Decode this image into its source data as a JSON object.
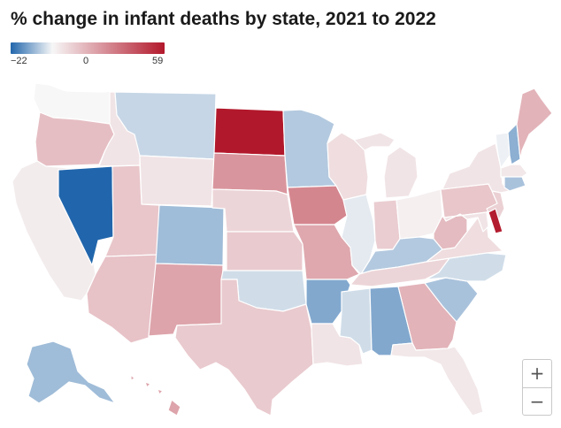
{
  "title": "% change in infant deaths by state, 2021 to 2022",
  "legend": {
    "min_label": "−22",
    "mid_label": "0",
    "max_label": "59",
    "min_value": -22,
    "mid_value": 0,
    "max_value": 59,
    "colors": {
      "low": "#2166ac",
      "mid": "#f7f7f7",
      "high": "#b2182b"
    }
  },
  "zoom": {
    "in_label": "+",
    "out_label": "−"
  },
  "states": [
    {
      "id": "WA",
      "value": 0
    },
    {
      "id": "OR",
      "value": 15
    },
    {
      "id": "CA",
      "value": 3
    },
    {
      "id": "NV",
      "value": -22
    },
    {
      "id": "ID",
      "value": 5
    },
    {
      "id": "MT",
      "value": -5
    },
    {
      "id": "WY",
      "value": 5
    },
    {
      "id": "UT",
      "value": 13
    },
    {
      "id": "AZ",
      "value": 14
    },
    {
      "id": "CO",
      "value": -9
    },
    {
      "id": "NM",
      "value": 22
    },
    {
      "id": "ND",
      "value": 59
    },
    {
      "id": "SD",
      "value": 26
    },
    {
      "id": "NE",
      "value": 9
    },
    {
      "id": "KS",
      "value": 12
    },
    {
      "id": "OK",
      "value": -4
    },
    {
      "id": "TX",
      "value": 12
    },
    {
      "id": "MN",
      "value": -7
    },
    {
      "id": "IA",
      "value": 30
    },
    {
      "id": "MO",
      "value": 21
    },
    {
      "id": "AR",
      "value": -12
    },
    {
      "id": "LA",
      "value": 5
    },
    {
      "id": "WI",
      "value": 7
    },
    {
      "id": "IL",
      "value": -2
    },
    {
      "id": "MI",
      "value": 5
    },
    {
      "id": "IN",
      "value": 11
    },
    {
      "id": "OH",
      "value": 2
    },
    {
      "id": "KY",
      "value": -7
    },
    {
      "id": "TN",
      "value": 9
    },
    {
      "id": "MS",
      "value": -4
    },
    {
      "id": "AL",
      "value": -12
    },
    {
      "id": "GA",
      "value": 18
    },
    {
      "id": "FL",
      "value": 4
    },
    {
      "id": "SC",
      "value": -8
    },
    {
      "id": "NC",
      "value": -4
    },
    {
      "id": "VA",
      "value": 7
    },
    {
      "id": "WV",
      "value": 16
    },
    {
      "id": "PA",
      "value": 13
    },
    {
      "id": "NY",
      "value": 5
    },
    {
      "id": "VT",
      "value": -1
    },
    {
      "id": "NH",
      "value": -11
    },
    {
      "id": "ME",
      "value": 18
    },
    {
      "id": "MA",
      "value": 4
    },
    {
      "id": "CT",
      "value": -8
    },
    {
      "id": "NJ",
      "value": 10
    },
    {
      "id": "DE",
      "value": 58
    },
    {
      "id": "MD",
      "value": 5
    },
    {
      "id": "AK",
      "value": -9
    },
    {
      "id": "HI",
      "value": 22
    }
  ]
}
